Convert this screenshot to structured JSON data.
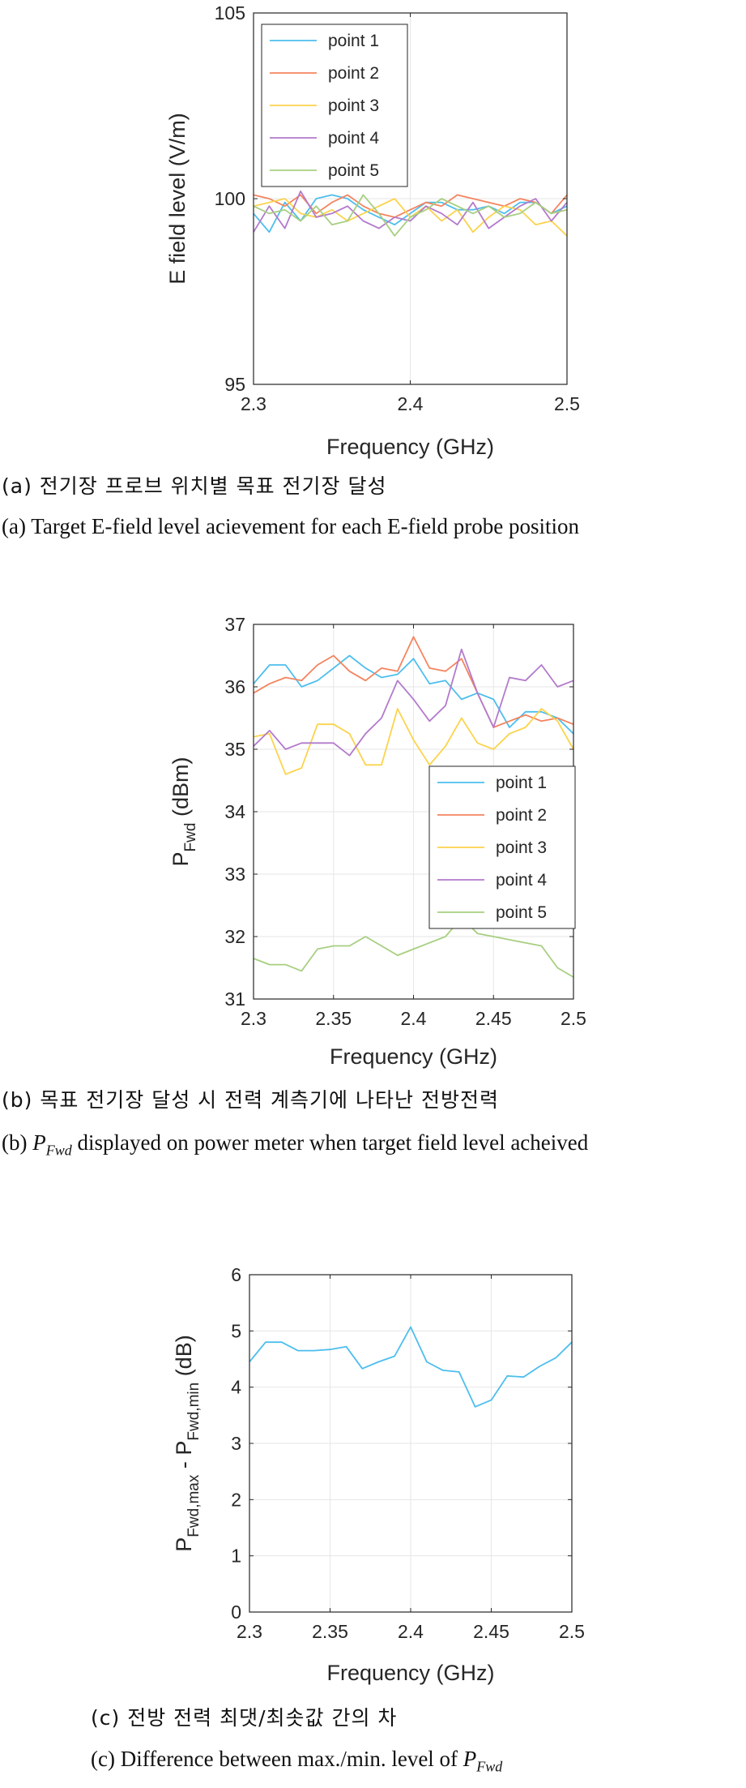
{
  "chart_data": [
    {
      "id": "a",
      "type": "line",
      "xlabel": "Frequency (GHz)",
      "ylabel": "E field level (V/m)",
      "xlim": [
        2.3,
        2.5
      ],
      "ylim": [
        95,
        105
      ],
      "xticks": [
        "2.3",
        "2.4",
        "2.5"
      ],
      "yticks": [
        "95",
        "100",
        "105"
      ],
      "grid": true,
      "legend": "top-left",
      "x": [
        2.3,
        2.31,
        2.32,
        2.33,
        2.34,
        2.35,
        2.36,
        2.37,
        2.38,
        2.39,
        2.4,
        2.41,
        2.42,
        2.43,
        2.44,
        2.45,
        2.46,
        2.47,
        2.48,
        2.49,
        2.5
      ],
      "series": [
        {
          "name": "point 1",
          "color": "#4DBEEE",
          "values": [
            99.6,
            99.1,
            99.9,
            99.4,
            100.0,
            100.1,
            100.0,
            99.7,
            99.5,
            99.3,
            99.6,
            99.9,
            99.9,
            99.7,
            99.7,
            99.8,
            99.6,
            99.9,
            99.9,
            99.6,
            99.8
          ]
        },
        {
          "name": "point 2",
          "color": "#F4845F",
          "values": [
            100.1,
            100.0,
            99.8,
            100.1,
            99.6,
            99.9,
            100.1,
            99.8,
            99.6,
            99.5,
            99.7,
            99.9,
            99.8,
            100.1,
            100.0,
            99.9,
            99.8,
            100.0,
            99.9,
            99.6,
            100.1
          ]
        },
        {
          "name": "point 3",
          "color": "#FCD34D",
          "values": [
            99.8,
            99.9,
            100.0,
            99.6,
            99.5,
            99.7,
            99.4,
            99.6,
            99.8,
            100.0,
            99.5,
            99.8,
            99.4,
            99.7,
            99.1,
            99.5,
            99.8,
            99.7,
            99.3,
            99.4,
            99.0
          ]
        },
        {
          "name": "point 4",
          "color": "#B37ACB",
          "values": [
            99.1,
            99.8,
            99.2,
            100.2,
            99.5,
            99.6,
            99.8,
            99.4,
            99.2,
            99.5,
            99.4,
            99.8,
            99.6,
            99.3,
            99.9,
            99.2,
            99.5,
            99.8,
            100.0,
            99.4,
            99.9
          ]
        },
        {
          "name": "point 5",
          "color": "#A7CF80",
          "values": [
            99.8,
            99.6,
            99.7,
            99.4,
            99.8,
            99.3,
            99.4,
            100.1,
            99.6,
            99.0,
            99.5,
            99.7,
            100.0,
            99.8,
            99.6,
            99.8,
            99.5,
            99.6,
            99.9,
            99.6,
            99.7
          ]
        }
      ]
    },
    {
      "id": "b",
      "type": "line",
      "xlabel": "Frequency (GHz)",
      "ylabel_main": "P",
      "ylabel_sub": "Fwd",
      "ylabel_unit": "(dBm)",
      "xlim": [
        2.3,
        2.5
      ],
      "ylim": [
        31,
        37
      ],
      "xticks": [
        "2.3",
        "2.35",
        "2.4",
        "2.45",
        "2.5"
      ],
      "yticks": [
        "31",
        "32",
        "33",
        "34",
        "35",
        "36",
        "37"
      ],
      "grid": true,
      "legend": "middle-right",
      "x": [
        2.3,
        2.31,
        2.32,
        2.33,
        2.34,
        2.35,
        2.36,
        2.37,
        2.38,
        2.39,
        2.4,
        2.41,
        2.42,
        2.43,
        2.44,
        2.45,
        2.46,
        2.47,
        2.48,
        2.49,
        2.5
      ],
      "series": [
        {
          "name": "point 1",
          "color": "#4DBEEE",
          "values": [
            36.05,
            36.35,
            36.35,
            36.0,
            36.1,
            36.3,
            36.5,
            36.3,
            36.15,
            36.2,
            36.45,
            36.05,
            36.1,
            35.8,
            35.9,
            35.8,
            35.35,
            35.6,
            35.6,
            35.5,
            35.25
          ]
        },
        {
          "name": "point 2",
          "color": "#F4845F",
          "values": [
            35.9,
            36.05,
            36.15,
            36.1,
            36.35,
            36.5,
            36.25,
            36.1,
            36.3,
            36.25,
            36.8,
            36.3,
            36.25,
            36.45,
            35.9,
            35.35,
            35.45,
            35.55,
            35.45,
            35.5,
            35.4
          ]
        },
        {
          "name": "point 3",
          "color": "#FCD34D",
          "values": [
            35.2,
            35.25,
            34.6,
            34.7,
            35.4,
            35.4,
            35.25,
            34.75,
            34.75,
            35.65,
            35.15,
            34.75,
            35.05,
            35.5,
            35.1,
            35.0,
            35.25,
            35.35,
            35.65,
            35.45,
            35.0
          ]
        },
        {
          "name": "point 4",
          "color": "#B37ACB",
          "values": [
            35.05,
            35.3,
            35.0,
            35.1,
            35.1,
            35.1,
            34.9,
            35.25,
            35.5,
            36.1,
            35.8,
            35.45,
            35.7,
            36.6,
            35.9,
            35.35,
            36.15,
            36.1,
            36.35,
            36.0,
            36.1
          ]
        },
        {
          "name": "point 5",
          "color": "#A7CF80",
          "values": [
            31.65,
            31.55,
            31.55,
            31.45,
            31.8,
            31.85,
            31.85,
            32.0,
            31.85,
            31.7,
            31.8,
            31.9,
            32.0,
            32.3,
            32.05,
            32.0,
            31.95,
            31.9,
            31.85,
            31.5,
            31.35
          ]
        }
      ]
    },
    {
      "id": "c",
      "type": "line",
      "xlabel": "Frequency (GHz)",
      "ylabel_main": "P",
      "ylabel_sub1": "Fwd,max",
      "ylabel_mid": " - P",
      "ylabel_sub2": "Fwd,min",
      "ylabel_unit": "(dB)",
      "xlim": [
        2.3,
        2.5
      ],
      "ylim": [
        0,
        6
      ],
      "xticks": [
        "2.3",
        "2.35",
        "2.4",
        "2.45",
        "2.5"
      ],
      "yticks": [
        "0",
        "1",
        "2",
        "3",
        "4",
        "5",
        "6"
      ],
      "grid": true,
      "x": [
        2.3,
        2.31,
        2.32,
        2.33,
        2.34,
        2.35,
        2.36,
        2.37,
        2.38,
        2.39,
        2.4,
        2.41,
        2.42,
        2.43,
        2.44,
        2.45,
        2.46,
        2.47,
        2.48,
        2.49,
        2.5
      ],
      "series": [
        {
          "color": "#4DBEEE",
          "values": [
            4.45,
            4.8,
            4.8,
            4.65,
            4.65,
            4.67,
            4.72,
            4.33,
            4.45,
            4.55,
            5.07,
            4.45,
            4.3,
            4.27,
            3.65,
            3.77,
            4.2,
            4.18,
            4.37,
            4.52,
            4.8
          ]
        }
      ]
    }
  ],
  "captions": {
    "a_kr": "(a) 전기장 프로브 위치별 목표 전기장 달성",
    "a_en": "(a) Target E-field level acievement for each E-field probe position",
    "b_kr": "(b) 목표 전기장 달성 시 전력 계측기에 나타난 전방전력",
    "b_en_prefix": "(b) ",
    "b_en_p": "P",
    "b_en_sub": "Fwd",
    "b_en_rest": " displayed on power meter when target field level acheived",
    "c_kr": "(c) 전방 전력 최댓/최솟값 간의 차",
    "c_en_text": "(c) Difference between max./min. level of ",
    "c_en_p": "P",
    "c_en_sub": "Fwd"
  }
}
